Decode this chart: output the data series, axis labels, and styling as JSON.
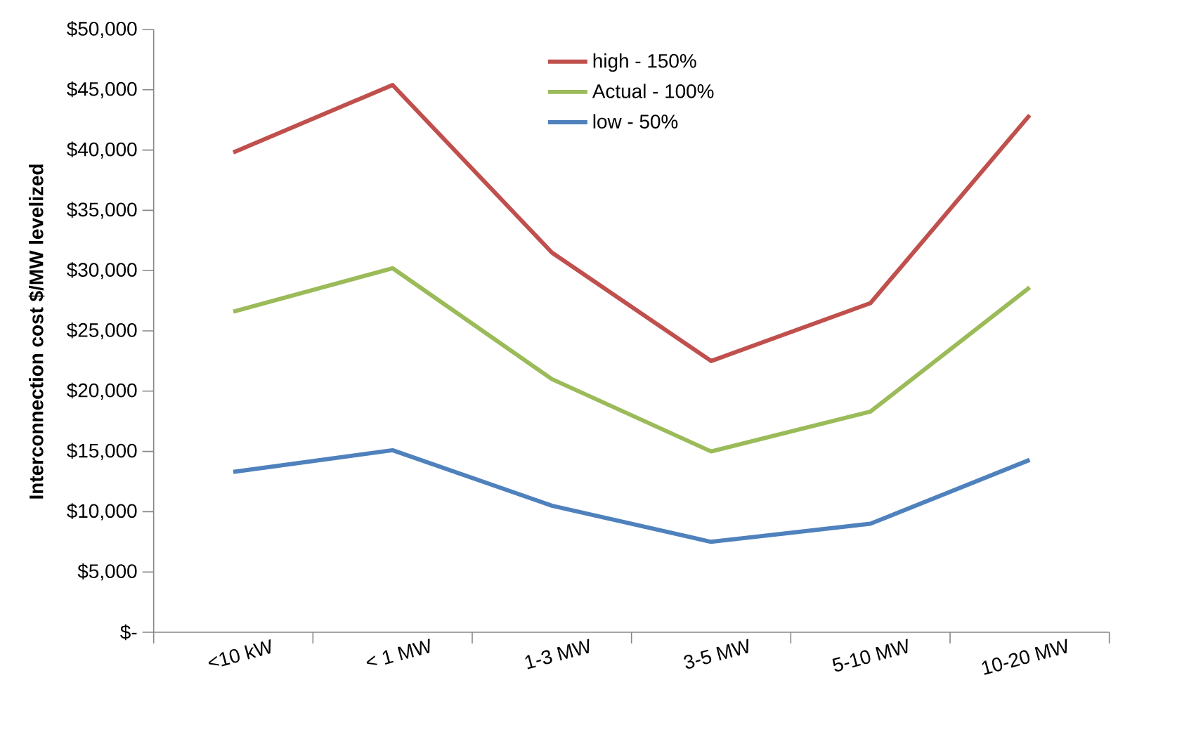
{
  "chart_data": {
    "type": "line",
    "ylabel": "Interconnection cost $/MW levelized",
    "categories": [
      "<10 kW",
      "< 1 MW",
      "1-3 MW",
      "3-5 MW",
      "5-10 MW",
      "10-20 MW"
    ],
    "series": [
      {
        "name": "high - 150%",
        "color": "#c0504d",
        "values": [
          39800,
          45400,
          31500,
          22500,
          27300,
          42900
        ]
      },
      {
        "name": "Actual - 100%",
        "color": "#9bbb59",
        "values": [
          26600,
          30200,
          21000,
          15000,
          18300,
          28600
        ]
      },
      {
        "name": "low - 50%",
        "color": "#4f81bd",
        "values": [
          13300,
          15100,
          10500,
          7500,
          9000,
          14300
        ]
      }
    ],
    "ylim": [
      0,
      50000
    ],
    "yticks": [
      {
        "value": 0,
        "label": "$-"
      },
      {
        "value": 5000,
        "label": "$5,000"
      },
      {
        "value": 10000,
        "label": "$10,000"
      },
      {
        "value": 15000,
        "label": "$15,000"
      },
      {
        "value": 20000,
        "label": "$20,000"
      },
      {
        "value": 25000,
        "label": "$25,000"
      },
      {
        "value": 30000,
        "label": "$30,000"
      },
      {
        "value": 35000,
        "label": "$35,000"
      },
      {
        "value": 40000,
        "label": "$40,000"
      },
      {
        "value": 45000,
        "label": "$45,000"
      },
      {
        "value": 50000,
        "label": "$50,000"
      }
    ],
    "legend": "top",
    "grid": false,
    "marker": "none",
    "line_style": "solid"
  }
}
